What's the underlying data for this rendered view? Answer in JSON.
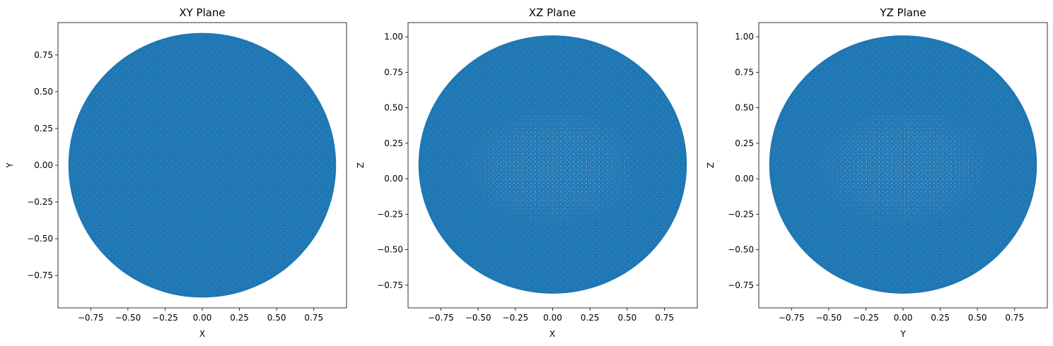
{
  "chart_data": [
    {
      "type": "scatter",
      "title": "XY Plane",
      "xlabel": "X",
      "ylabel": "Y",
      "xlim": [
        -0.97,
        0.97
      ],
      "ylim": [
        -0.97,
        0.97
      ],
      "xticks": [
        -0.75,
        -0.5,
        -0.25,
        0.0,
        0.25,
        0.5,
        0.75
      ],
      "xtick_labels": [
        "−0.75",
        "−0.50",
        "−0.25",
        "0.00",
        "0.25",
        "0.50",
        "0.75"
      ],
      "yticks": [
        -0.75,
        -0.5,
        -0.25,
        0.0,
        0.25,
        0.5,
        0.75
      ],
      "ytick_labels": [
        "−0.75",
        "−0.50",
        "−0.25",
        "0.00",
        "0.25",
        "0.50",
        "0.75"
      ],
      "point_cloud": {
        "center": [
          0,
          0
        ],
        "radius_x": 0.9,
        "radius_y": 0.9,
        "density": "uniform-dense"
      },
      "color": "#1f77b4",
      "grid": false
    },
    {
      "type": "scatter",
      "title": "XZ Plane",
      "xlabel": "X",
      "ylabel": "Z",
      "xlim": [
        -0.97,
        0.97
      ],
      "ylim": [
        -0.91,
        1.1
      ],
      "xticks": [
        -0.75,
        -0.5,
        -0.25,
        0.0,
        0.25,
        0.5,
        0.75
      ],
      "xtick_labels": [
        "−0.75",
        "−0.50",
        "−0.25",
        "0.00",
        "0.25",
        "0.50",
        "0.75"
      ],
      "yticks": [
        -0.75,
        -0.5,
        -0.25,
        0.0,
        0.25,
        0.5,
        0.75,
        1.0
      ],
      "ytick_labels": [
        "−0.75",
        "−0.50",
        "−0.25",
        "0.00",
        "0.25",
        "0.50",
        "0.75",
        "1.00"
      ],
      "point_cloud": {
        "center": [
          0,
          0.1
        ],
        "radius_x": 0.9,
        "radius_y": 0.91,
        "density": "sparse-center"
      },
      "color": "#1f77b4",
      "grid": false
    },
    {
      "type": "scatter",
      "title": "YZ Plane",
      "xlabel": "Y",
      "ylabel": "Z",
      "xlim": [
        -0.97,
        0.97
      ],
      "ylim": [
        -0.91,
        1.1
      ],
      "xticks": [
        -0.75,
        -0.5,
        -0.25,
        0.0,
        0.25,
        0.5,
        0.75
      ],
      "xtick_labels": [
        "−0.75",
        "−0.50",
        "−0.25",
        "0.00",
        "0.25",
        "0.50",
        "0.75"
      ],
      "yticks": [
        -0.75,
        -0.5,
        -0.25,
        0.0,
        0.25,
        0.5,
        0.75,
        1.0
      ],
      "ytick_labels": [
        "−0.75",
        "−0.50",
        "−0.25",
        "0.00",
        "0.25",
        "0.50",
        "0.75",
        "1.00"
      ],
      "point_cloud": {
        "center": [
          0,
          0.1
        ],
        "radius_x": 0.9,
        "radius_y": 0.91,
        "density": "sparse-center"
      },
      "color": "#1f77b4",
      "grid": false
    }
  ]
}
